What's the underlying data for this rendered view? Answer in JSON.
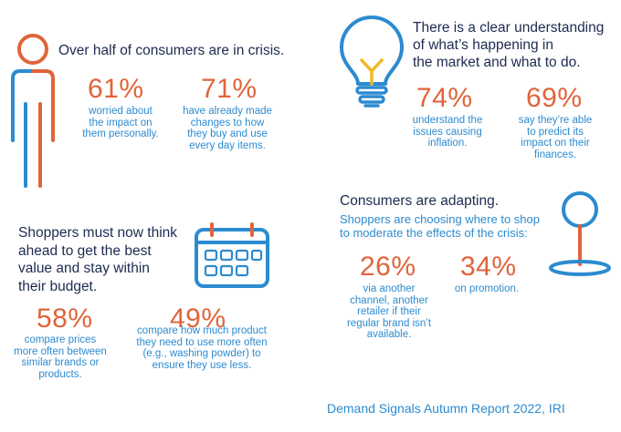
{
  "colors": {
    "navy": "#1d2b50",
    "orange": "#e0643a",
    "blue": "#2c8bd0"
  },
  "crisis": {
    "headline": "Over half of consumers are in crisis.",
    "stats": [
      {
        "value": "61%",
        "desc_lines": [
          "worried about",
          "the impact on",
          "them personally."
        ]
      },
      {
        "value": "71%",
        "desc_lines": [
          "have already made",
          "changes to how",
          "they buy and use",
          "every day items."
        ]
      }
    ]
  },
  "understanding": {
    "headline_lines": [
      "There is a clear understanding",
      "of what’s happening in",
      "the market and what to do."
    ],
    "stats": [
      {
        "value": "74%",
        "desc_lines": [
          "understand the",
          "issues causing",
          "inflation."
        ]
      },
      {
        "value": "69%",
        "desc_lines": [
          "say they’re able",
          "to predict its",
          "impact on their",
          "finances."
        ]
      }
    ]
  },
  "shoppers": {
    "headline_lines": [
      "Shoppers must now think",
      "ahead to get the best",
      "value and stay within",
      "their budget."
    ],
    "stats": [
      {
        "value": "58%",
        "desc_lines": [
          "compare prices",
          "more often between",
          "similar brands or",
          "products."
        ]
      },
      {
        "value": "49%",
        "desc_lines": [
          "compare how much product",
          "they need to use more often",
          "(e.g., washing powder) to",
          "ensure they use less."
        ]
      }
    ]
  },
  "adapting": {
    "headline": "Consumers are adapting.",
    "sub_lines": [
      "Shoppers are choosing where to shop",
      "to moderate the effects of the crisis:"
    ],
    "stats": [
      {
        "value": "26%",
        "desc_lines": [
          "via another",
          "channel, another",
          "retailer if their",
          "regular brand isn’t",
          "available."
        ]
      },
      {
        "value": "34%",
        "desc_lines": [
          "on promotion."
        ]
      }
    ]
  },
  "footer": "Demand Signals Autumn Report 2022, IRI",
  "icons": [
    "person-icon",
    "lightbulb-icon",
    "calendar-icon",
    "location-pin-icon"
  ]
}
